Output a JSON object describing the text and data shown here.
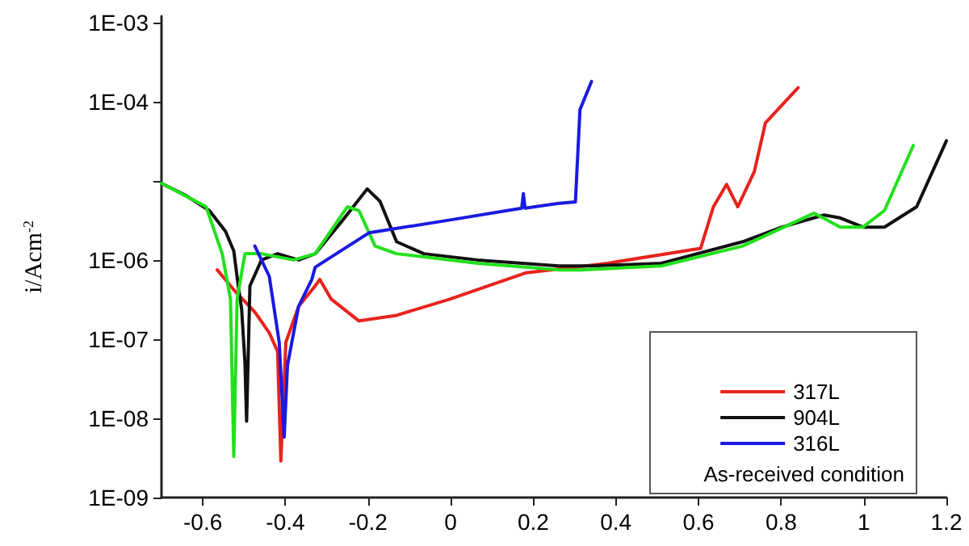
{
  "chart_data": {
    "type": "line",
    "ylabel": "i/Acm$^{-2}$",
    "log": "y",
    "grid": false,
    "legend": "bottom right",
    "marker": "none",
    "line_style": "solid",
    "annotations": [
      "As-received condition"
    ],
    "xlim": [
      -0.7,
      1.2
    ],
    "xticks": [
      -0.6,
      -0.4,
      -0.2,
      0.0,
      0.2,
      0.4,
      0.6,
      0.8,
      1.0,
      1.2
    ],
    "ylim": [
      1e-09,
      0.0012
    ],
    "yticks": [
      {
        "value": 1e-09,
        "label": "1E-09"
      },
      {
        "value": 1e-08,
        "label": "1E-08"
      },
      {
        "value": 1e-07,
        "label": "1E-07"
      },
      {
        "value": 1e-06,
        "label": "1E-06"
      },
      {
        "value": 1e-05,
        "label": null
      },
      {
        "value": 0.0001,
        "label": "1E-04"
      },
      {
        "value": 0.001,
        "label": "1E-03"
      }
    ],
    "series": [
      {
        "name": "317L",
        "color": "#e8221c",
        "x": [
          -0.565,
          -0.525,
          -0.474,
          -0.439,
          -0.419,
          -0.411,
          -0.399,
          -0.368,
          -0.328,
          -0.317,
          -0.289,
          -0.222,
          -0.131,
          -0.002,
          0.183,
          0.38,
          0.605,
          0.636,
          0.668,
          0.695,
          0.735,
          0.762,
          0.841
        ],
        "values": [
          7.5e-07,
          4.2e-07,
          2.2e-07,
          1.2e-07,
          7e-08,
          2.9e-09,
          9.1e-08,
          2.6e-07,
          4.7e-07,
          5.7e-07,
          3.2e-07,
          1.7e-07,
          2e-07,
          3.2e-07,
          6.9e-07,
          9.1e-07,
          1.4e-06,
          4.7e-06,
          9e-06,
          4.7e-06,
          1.3e-05,
          5.4e-05,
          0.00015
        ]
      },
      {
        "name": "904L",
        "color": "#111111",
        "x": [
          -0.7,
          -0.643,
          -0.584,
          -0.545,
          -0.525,
          -0.513,
          -0.506,
          -0.498,
          -0.494,
          -0.486,
          -0.458,
          -0.419,
          -0.368,
          -0.328,
          -0.261,
          -0.202,
          -0.171,
          -0.131,
          -0.065,
          0.065,
          0.262,
          0.341,
          0.51,
          0.707,
          0.802,
          0.904,
          0.943,
          0.998,
          1.05,
          1.128,
          1.2
        ],
        "values": [
          9.3e-06,
          6.6e-06,
          4.2e-06,
          2.3e-06,
          1.3e-06,
          4.2e-07,
          2.4e-07,
          5.1e-08,
          9.2e-09,
          4.7e-07,
          1e-06,
          1.2e-06,
          1e-06,
          1.2e-06,
          3.2e-06,
          7.9e-06,
          5.5e-06,
          1.7e-06,
          1.2e-06,
          1e-06,
          8.4e-07,
          8.4e-07,
          9.1e-07,
          1.7e-06,
          2.6e-06,
          3.7e-06,
          3.4e-06,
          2.6e-06,
          2.6e-06,
          4.7e-06,
          3.2e-05
        ]
      },
      {
        "color": "#22e01c",
        "x": [
          -0.7,
          -0.592,
          -0.553,
          -0.533,
          -0.525,
          -0.517,
          -0.498,
          -0.458,
          -0.38,
          -0.328,
          -0.25,
          -0.222,
          -0.183,
          -0.131,
          0.065,
          0.262,
          0.313,
          0.51,
          0.707,
          0.88,
          0.943,
          0.998,
          1.05,
          1.12
        ],
        "values": [
          9.3e-06,
          4.7e-06,
          1.2e-06,
          3.2e-07,
          3.3e-09,
          3.2e-07,
          1.2e-06,
          1.2e-06,
          1e-06,
          1.2e-06,
          4.7e-06,
          4.2e-06,
          1.5e-06,
          1.2e-06,
          9.1e-07,
          7.5e-07,
          7.5e-07,
          8.4e-07,
          1.5e-06,
          3.9e-06,
          2.6e-06,
          2.6e-06,
          4.2e-06,
          2.8e-05
        ]
      },
      {
        "name": "316L",
        "color": "#1a1ae0",
        "x": [
          -0.474,
          -0.439,
          -0.415,
          -0.403,
          -0.395,
          -0.368,
          -0.336,
          -0.328,
          -0.198,
          -0.002,
          0.172,
          0.176,
          0.18,
          0.262,
          0.302,
          0.313,
          0.341
        ],
        "values": [
          1.5e-06,
          6.2e-07,
          9.1e-08,
          5.8e-09,
          4.7e-08,
          2.6e-07,
          5.7e-07,
          8.1e-07,
          2.2e-06,
          3.2e-06,
          4.5e-06,
          6.9e-06,
          4.5e-06,
          5.2e-06,
          5.4e-06,
          7.9e-05,
          0.00018
        ]
      }
    ]
  }
}
